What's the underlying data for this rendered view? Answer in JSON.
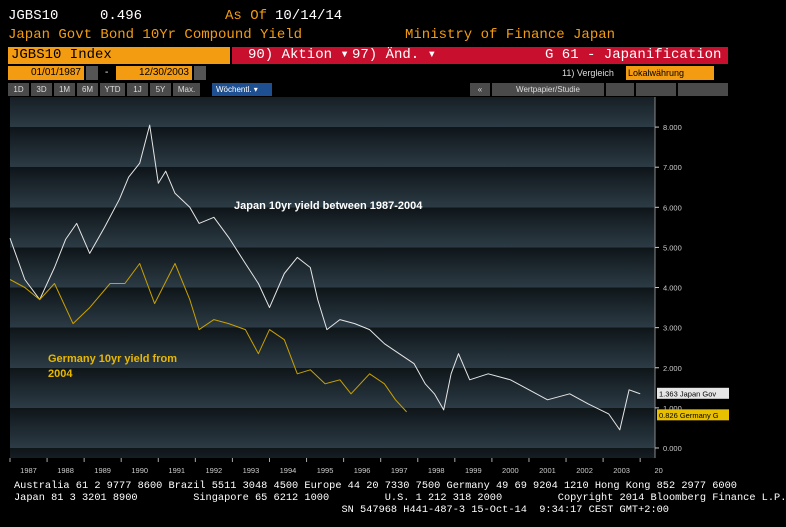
{
  "header": {
    "ticker": "JGBS10",
    "value": 0.496,
    "as_of_label": "As Of",
    "date": "10/14/14",
    "description": "Japan Govt Bond 10Yr Compound Yield",
    "source": "Ministry of Finance Japan"
  },
  "toolbar": {
    "security": "JGBS10 Index",
    "actions": "90) Aktion",
    "edit": "97) Änd.",
    "page": "G 61 - Japanification",
    "start_date": "01/01/1987",
    "separator": "-",
    "end_date": "12/30/2003",
    "compare": "11) Vergleich",
    "currency": "Lokalwährung",
    "ranges": [
      "1D",
      "3D",
      "1M",
      "6M",
      "YTD",
      "1J",
      "5Y",
      "Max."
    ],
    "frequency": "Wöchentl.",
    "security_study": "Wertpapier/Studie"
  },
  "chart_data": {
    "type": "line",
    "annotations": [
      "Japan 10yr yield between 1987-2004",
      "Germany 10yr yield from 2004"
    ],
    "series": [
      {
        "color": "#e6e6e6",
        "x": [
          1987.0,
          1987.4,
          1987.8,
          1988.2,
          1988.5,
          1988.8,
          1989.15,
          1989.55,
          1989.95,
          1990.2,
          1990.5,
          1990.77,
          1991.0,
          1991.2,
          1991.45,
          1991.85,
          1992.1,
          1992.5,
          1992.9,
          1993.35,
          1993.7,
          1994.0,
          1994.4,
          1994.75,
          1995.1,
          1995.3,
          1995.55,
          1995.9,
          1996.3,
          1996.7,
          1997.1,
          1997.5,
          1997.9,
          1998.2,
          1998.45,
          1998.7,
          1998.9,
          1999.1,
          1999.4,
          1999.9,
          2000.5,
          2001.0,
          2001.5,
          2002.1,
          2002.6,
          2003.15,
          2003.45,
          2003.7,
          2004.0
        ],
        "values": [
          5.23,
          4.2,
          3.7,
          4.5,
          5.2,
          5.6,
          4.85,
          5.5,
          6.2,
          6.75,
          7.1,
          8.05,
          6.6,
          6.9,
          6.35,
          6.0,
          5.6,
          5.75,
          5.25,
          4.6,
          4.1,
          3.5,
          4.35,
          4.75,
          4.5,
          3.7,
          2.95,
          3.2,
          3.1,
          2.95,
          2.6,
          2.35,
          2.1,
          1.6,
          1.35,
          0.95,
          1.85,
          2.35,
          1.7,
          1.85,
          1.7,
          1.45,
          1.2,
          1.35,
          1.1,
          0.85,
          0.45,
          1.45,
          1.35
        ]
      },
      {
        "color": "#c9a100",
        "x": [
          1987.0,
          1987.4,
          1987.8,
          1988.2,
          1988.7,
          1989.15,
          1989.7,
          1990.1,
          1990.5,
          1990.9,
          1991.45,
          1991.85,
          1992.1,
          1992.5,
          1992.9,
          1993.35,
          1993.7,
          1994.0,
          1994.4,
          1994.75,
          1995.1,
          1995.5,
          1995.9,
          1996.2,
          1996.7,
          1997.1,
          1997.4,
          1997.7
        ],
        "values": [
          4.2,
          4.0,
          3.7,
          4.1,
          3.1,
          3.5,
          4.1,
          4.1,
          4.6,
          3.6,
          4.6,
          3.7,
          2.95,
          3.2,
          3.1,
          2.95,
          2.35,
          2.95,
          2.7,
          1.85,
          1.95,
          1.6,
          1.7,
          1.35,
          1.85,
          1.6,
          1.2,
          0.9
        ]
      }
    ],
    "tags": [
      {
        "value": 1.363,
        "label": "1.363 Japan Gov",
        "color": "#e6e6e6"
      },
      {
        "value": 0.826,
        "label": "0.826 Germany G",
        "color": "#e8c000"
      }
    ],
    "xlim": [
      1987,
      2004.4
    ],
    "xticks": [
      1987,
      1988,
      1989,
      1990,
      1991,
      1992,
      1993,
      1994,
      1995,
      1996,
      1997,
      1998,
      1999,
      2000,
      2001,
      2002,
      2003,
      {
        "value": 2004,
        "label": "20"
      }
    ],
    "ylim": [
      -0.25,
      8.75
    ],
    "yticks": [
      {
        "value": 0,
        "label": "0.000"
      },
      {
        "value": 1,
        "label": "1.000"
      },
      {
        "value": 2,
        "label": "2.000"
      },
      {
        "value": 3,
        "label": "3.000"
      },
      {
        "value": 4,
        "label": "4.000"
      },
      {
        "value": 5,
        "label": "5.000"
      },
      {
        "value": 6,
        "label": "6.000"
      },
      {
        "value": 7,
        "label": "7.000"
      },
      {
        "value": 8,
        "label": "8.000"
      }
    ],
    "grid": false
  },
  "footer": {
    "lines": [
      "Australia 61 2 9777 8600 Brazil 5511 3048 4500 Europe 44 20 7330 7500 Germany 49 69 9204 1210 Hong Kong 852 2977 6000",
      "Japan 81 3 3201 8900         Singapore 65 6212 1000         U.S. 1 212 318 2000         Copyright 2014 Bloomberg Finance L.P.",
      "                                                     SN 547968 H441-487-3 15-Oct-14  9:34:17 CEST GMT+2:00"
    ]
  }
}
